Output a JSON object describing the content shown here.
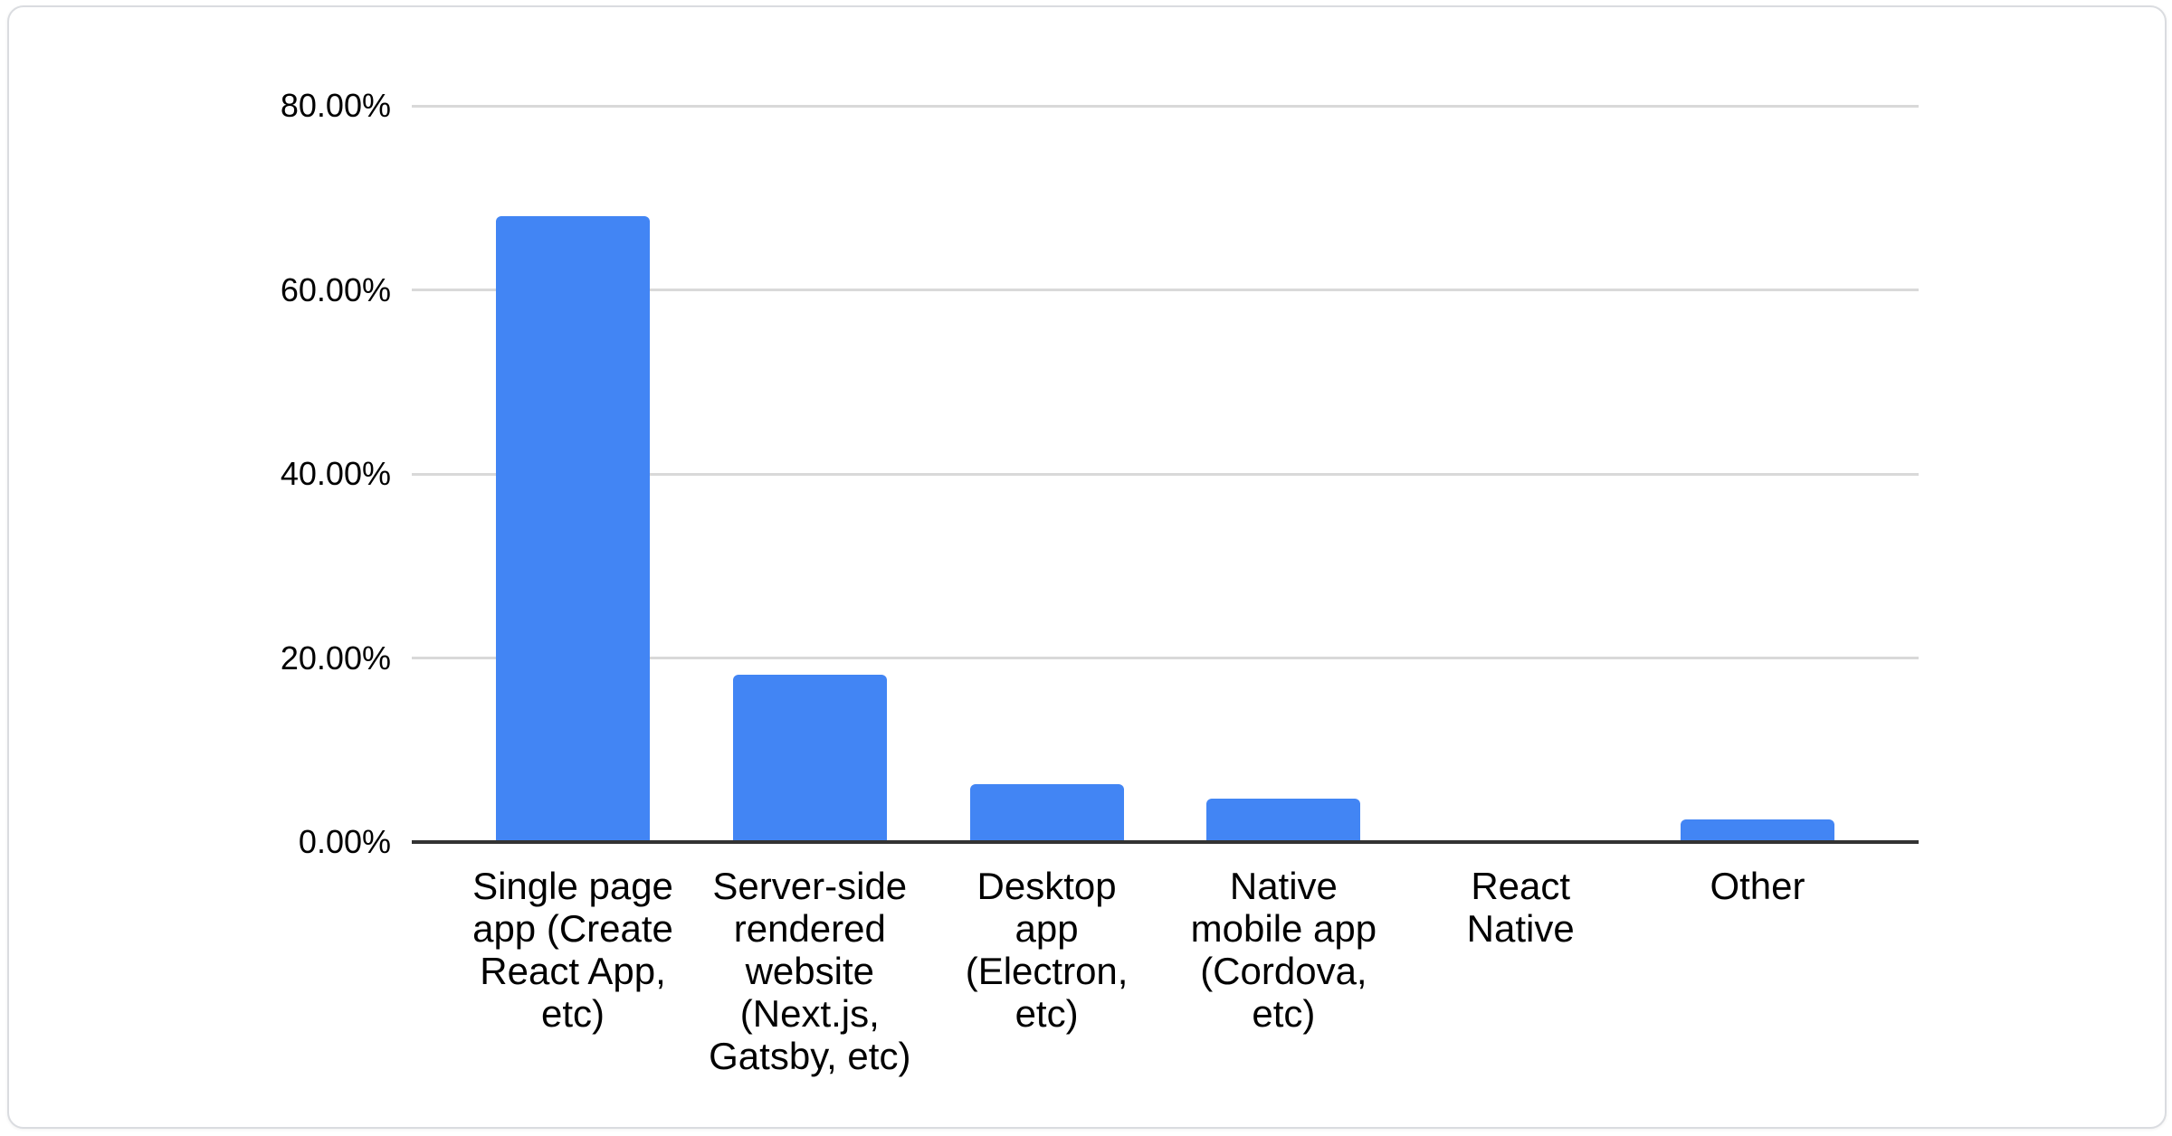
{
  "card": {
    "background": "#ffffff",
    "border_color": "#dadce0"
  },
  "chart_data": {
    "type": "bar",
    "title": "",
    "xlabel": "",
    "ylabel": "",
    "unit": "%",
    "categories": [
      "Single page app (Create React App, etc)",
      "Server-side rendered website (Next.js, Gatsby, etc)",
      "Desktop app (Electron, etc)",
      "Native mobile app (Cordova, etc)",
      "React Native",
      "Other"
    ],
    "category_label_lines": [
      [
        "Single page",
        "app (Create",
        "React App,",
        "etc)"
      ],
      [
        "Server-side",
        "rendered",
        "website",
        "(Next.js,",
        "Gatsby, etc)"
      ],
      [
        "Desktop",
        "app",
        "(Electron,",
        "etc)"
      ],
      [
        "Native",
        "mobile app",
        "(Cordova,",
        "etc)"
      ],
      [
        "React",
        "Native"
      ],
      [
        "Other"
      ]
    ],
    "values": [
      68.0,
      18.2,
      6.3,
      4.7,
      0.0,
      2.5
    ],
    "ylim": [
      0,
      80
    ],
    "ytick_step": 20,
    "ytick_labels": [
      "0.00%",
      "20.00%",
      "40.00%",
      "60.00%",
      "80.00%"
    ],
    "grid": true,
    "legend": "none",
    "bar_color": "#4285f4",
    "axis_color": "#333333",
    "gridline_color": "#d9d9d9",
    "label_color": "#000000"
  }
}
